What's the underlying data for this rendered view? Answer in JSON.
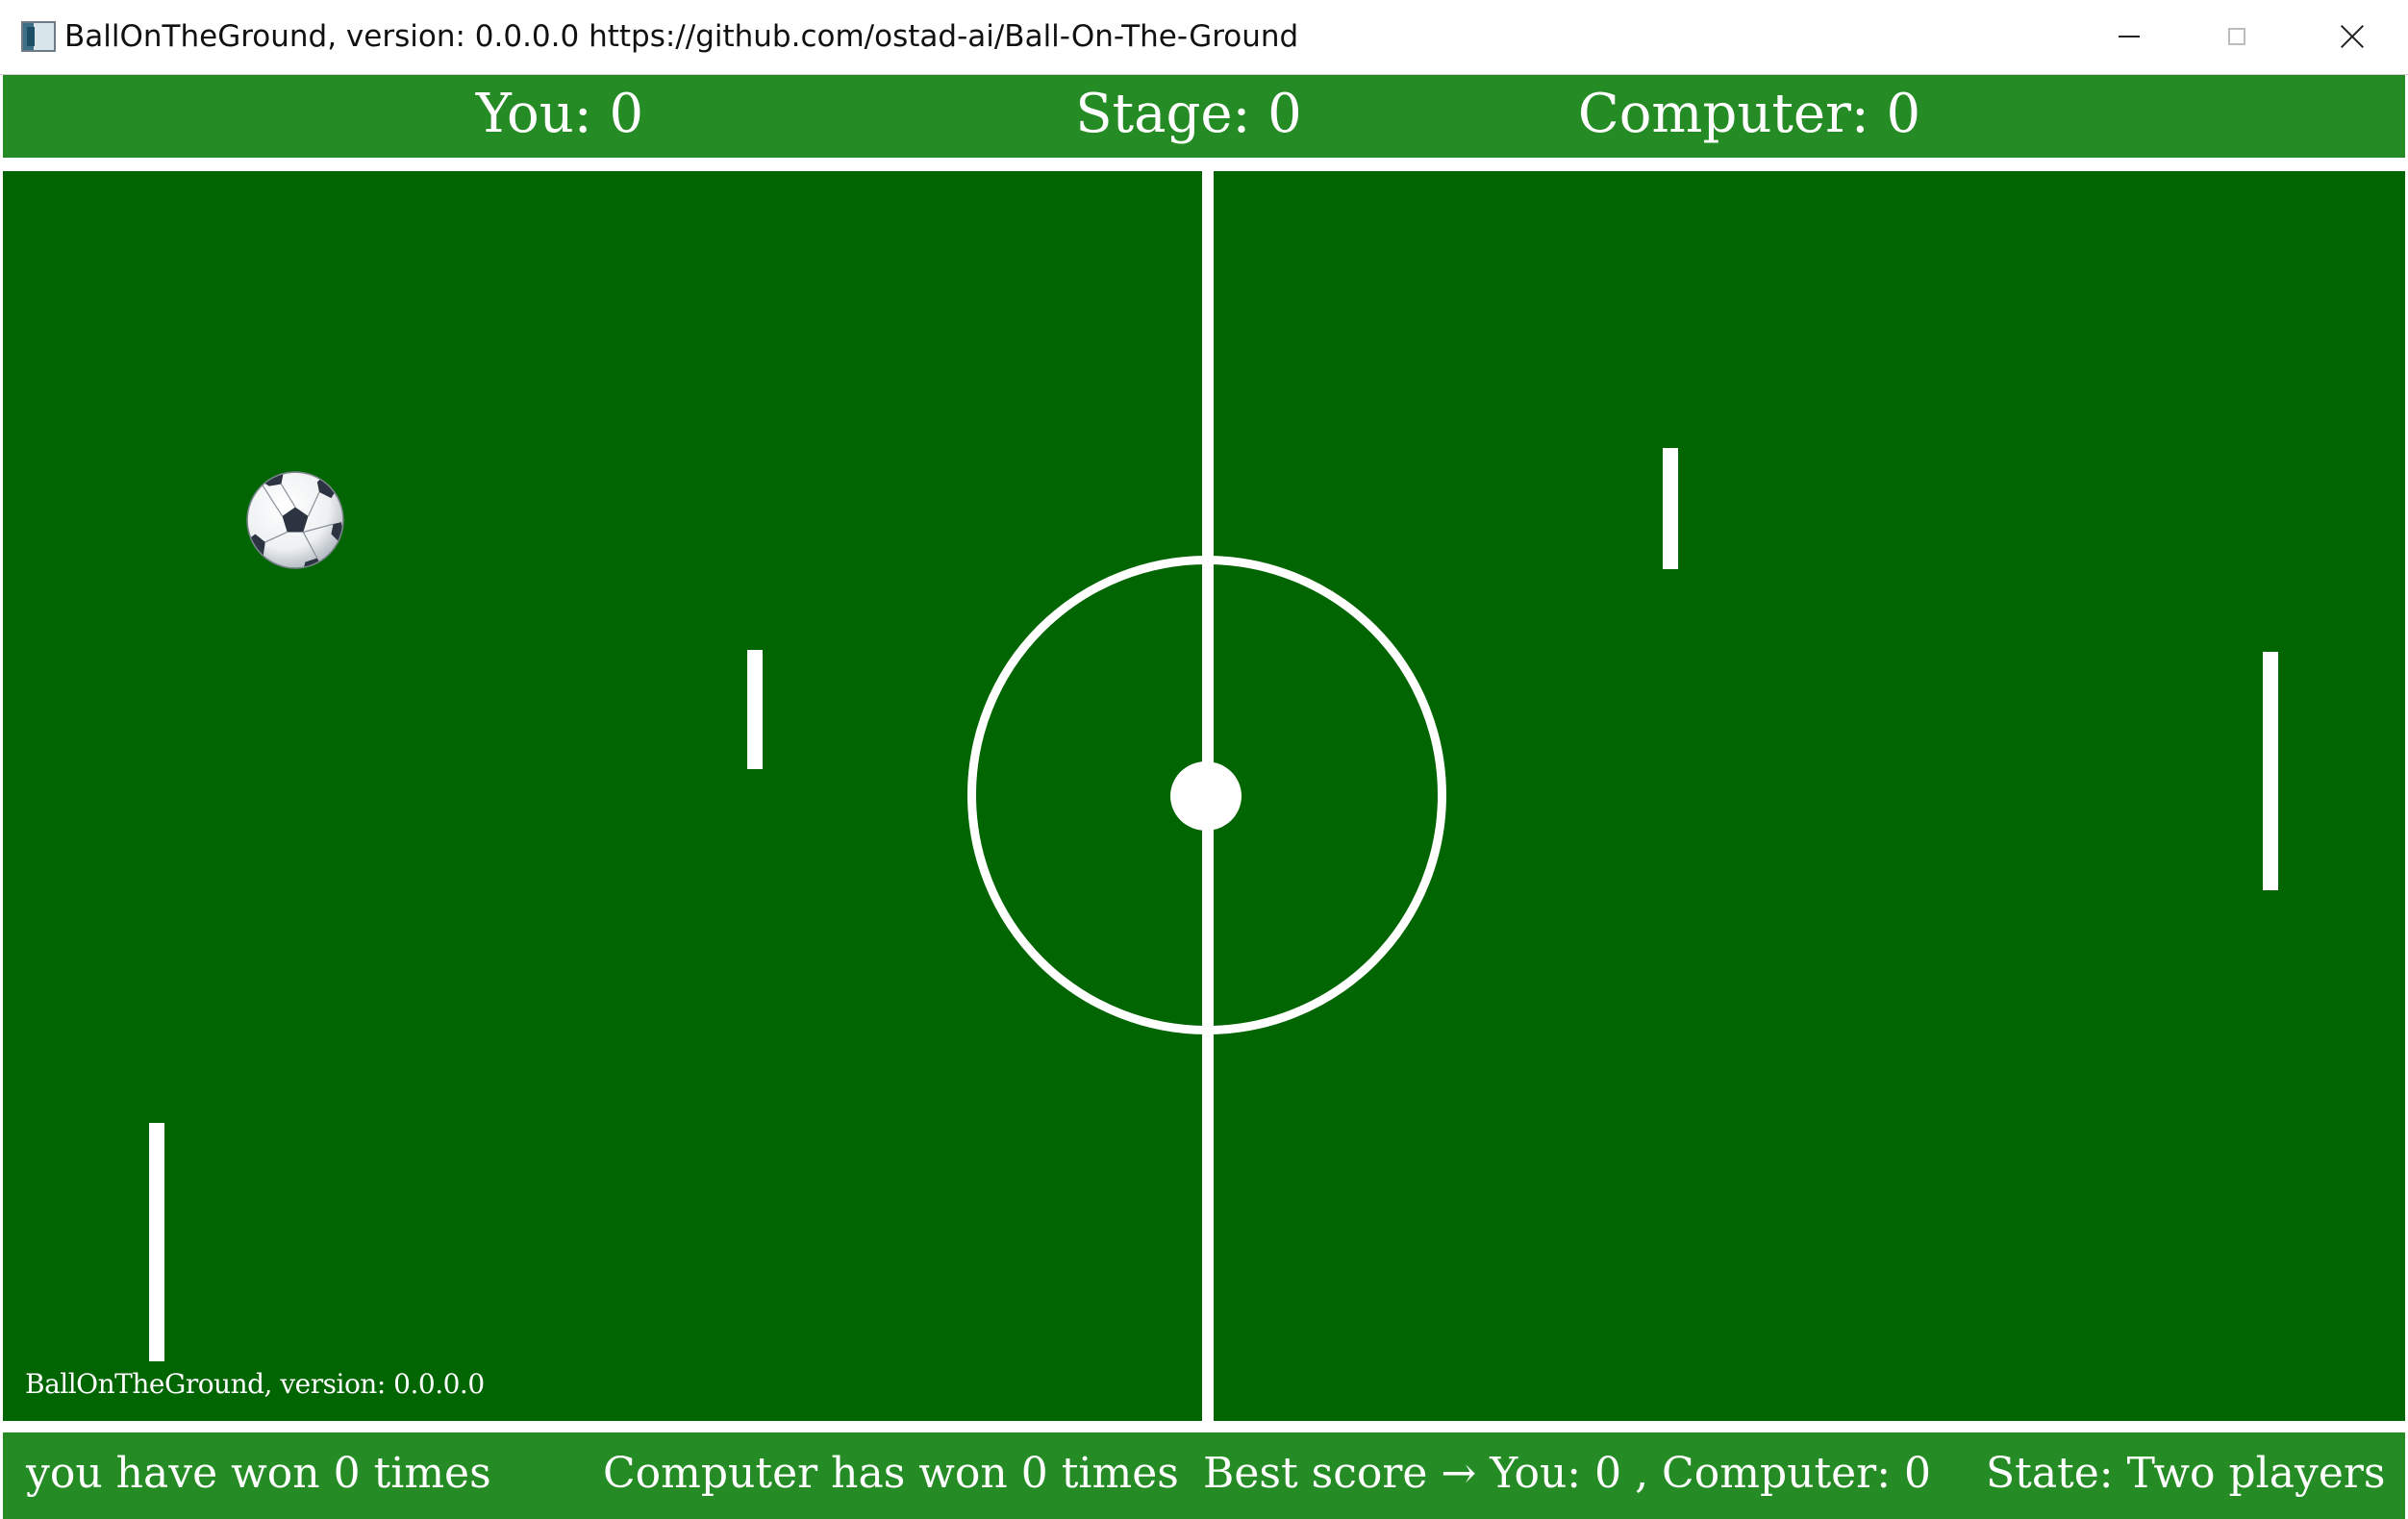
{
  "window": {
    "title": "BallOnTheGround, version: 0.0.0.0 https://github.com/ostad-ai/Ball-On-The-Ground",
    "app_icon": "app-window-icon",
    "controls": {
      "minimize": "minimize-icon",
      "maximize": "maximize-icon",
      "close": "close-icon"
    }
  },
  "scoreboard": {
    "you": "You: 0",
    "stage": "Stage: 0",
    "computer": "Computer: 0"
  },
  "field": {
    "version_label": "BallOnTheGround, version: 0.0.0.0",
    "ball_icon": "soccer-ball-icon"
  },
  "status_bar": {
    "you_wins": "you have won 0 times",
    "computer_wins": "Computer has won 0 times",
    "best_score": "Best score → You: 0 , Computer: 0",
    "state": "State: Two players"
  },
  "colors": {
    "field": "#016501",
    "bars": "#258c25",
    "lines": "#ffffff"
  }
}
